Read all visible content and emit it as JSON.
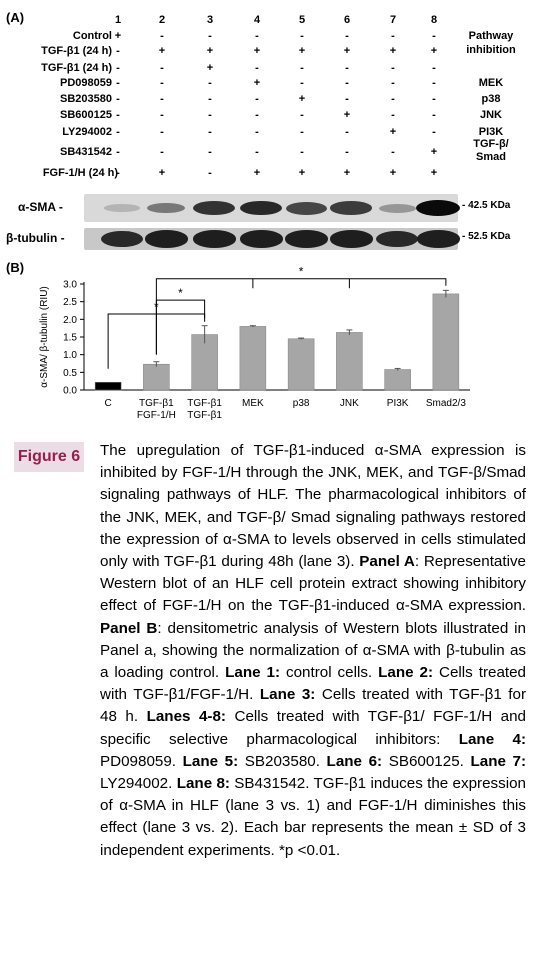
{
  "panel_a": {
    "label": "(A)",
    "lanes": [
      "1",
      "2",
      "3",
      "4",
      "5",
      "6",
      "7",
      "8"
    ],
    "pathway_header": [
      "Pathway",
      "inhibition"
    ],
    "rows": [
      {
        "label": "Control",
        "signs": [
          "+",
          "-",
          "-",
          "-",
          "-",
          "-",
          "-",
          "-"
        ],
        "inhibition": ""
      },
      {
        "label": "TGF-β1 (24 h)",
        "signs": [
          "-",
          "+",
          "+",
          "+",
          "+",
          "+",
          "+",
          "+"
        ],
        "inhibition": ""
      },
      {
        "label": "TGF-β1 (24 h)",
        "signs": [
          "-",
          "-",
          "+",
          "-",
          "-",
          "-",
          "-",
          "-"
        ],
        "inhibition": ""
      },
      {
        "label": "PD098059",
        "signs": [
          "-",
          "-",
          "-",
          "+",
          "-",
          "-",
          "-",
          "-"
        ],
        "inhibition": "MEK"
      },
      {
        "label": "SB203580",
        "signs": [
          "-",
          "-",
          "-",
          "-",
          "+",
          "-",
          "-",
          "-"
        ],
        "inhibition": "p38"
      },
      {
        "label": "SB600125",
        "signs": [
          "-",
          "-",
          "-",
          "-",
          "-",
          "+",
          "-",
          "-"
        ],
        "inhibition": "JNK"
      },
      {
        "label": "LY294002",
        "signs": [
          "-",
          "-",
          "-",
          "-",
          "-",
          "-",
          "+",
          "-"
        ],
        "inhibition": "PI3K"
      },
      {
        "label": "SB431542",
        "signs": [
          "-",
          "-",
          "-",
          "-",
          "-",
          "-",
          "-",
          "+"
        ],
        "inhibition": "TGF-β/ Smad"
      },
      {
        "label": "FGF-1/H (24 h)",
        "signs": [
          "-",
          "+",
          "-",
          "+",
          "+",
          "+",
          "+",
          "+"
        ],
        "inhibition": ""
      }
    ],
    "blots": [
      {
        "label": "α-SMA -",
        "size": "- 42.5 KDa",
        "intensity": [
          0.15,
          0.45,
          0.8,
          0.85,
          0.7,
          0.75,
          0.3,
          1.0
        ]
      },
      {
        "label": "β-tubulin -",
        "size": "- 52.5 KDa",
        "intensity": [
          0.85,
          0.9,
          0.9,
          0.9,
          0.9,
          0.9,
          0.85,
          0.9
        ]
      }
    ]
  },
  "chart_data": {
    "type": "bar",
    "panel_label": "(B)",
    "ylabel": "α-SMA/ β-tubulin (RIU)",
    "ylim": [
      0,
      3.0
    ],
    "yticks": [
      "0.0",
      "0.5",
      "1.0",
      "1.5",
      "2.0",
      "2.5",
      "3.0"
    ],
    "categories": [
      "C",
      "TGF-β1 FGF-1/H",
      "TGF-β1 TGF-β1",
      "MEK",
      "p38",
      "JNK",
      "PI3K",
      "Smad2/3"
    ],
    "category_lines": [
      [
        "C"
      ],
      [
        "TGF-β1",
        "FGF-1/H"
      ],
      [
        "TGF-β1",
        "TGF-β1"
      ],
      [
        "MEK"
      ],
      [
        "p38"
      ],
      [
        "JNK"
      ],
      [
        "PI3K"
      ],
      [
        "Smad2/3"
      ]
    ],
    "values": [
      0.22,
      0.73,
      1.57,
      1.8,
      1.45,
      1.63,
      0.58,
      2.72
    ],
    "errors": [
      0.0,
      0.07,
      0.25,
      0.02,
      0.02,
      0.07,
      0.03,
      0.1
    ],
    "colors": [
      "#000000",
      "#a6a6a6",
      "#a6a6a6",
      "#a6a6a6",
      "#a6a6a6",
      "#a6a6a6",
      "#a6a6a6",
      "#a6a6a6"
    ],
    "significance": [
      {
        "from": 0,
        "to": 2,
        "label": "*"
      },
      {
        "from": 1,
        "to": 2,
        "label": "*"
      },
      {
        "from": 1,
        "to": 7,
        "label": "*"
      }
    ]
  },
  "caption": {
    "label": "Figure 6",
    "parts": [
      {
        "t": "The upregulation of TGF-β1-induced α-SMA expression is inhibited by FGF-1/H through the JNK, MEK, and TGF-β/Smad signaling pathways of HLF. The pharmacological inhibitors of the JNK, MEK, and TGF-β/ Smad signaling pathways restored the expression of α-SMA to levels observed in cells stimulated only with TGF-β1 during 48h (lane 3). "
      },
      {
        "t": "Panel A",
        "b": true
      },
      {
        "t": ": Representative Western blot of an HLF cell protein extract showing inhibitory effect of FGF-1/H on the TGF-β1-induced α-SMA expression. "
      },
      {
        "t": "Panel B",
        "b": true
      },
      {
        "t": ": densitometric analysis of Western blots illustrated in Panel a, showing the normalization of α-SMA with β-tubulin as a loading control. "
      },
      {
        "t": "Lane 1:",
        "b": true
      },
      {
        "t": " control cells. "
      },
      {
        "t": "Lane 2:",
        "b": true
      },
      {
        "t": " Cells treated with TGF-β1/FGF-1/H.   "
      },
      {
        "t": "Lane 3:",
        "b": true
      },
      {
        "t": " Cells treated with TGF-β1 for 48 h. "
      },
      {
        "t": "Lanes 4-8:",
        "b": true
      },
      {
        "t": " Cells treated with TGF-β1/ FGF-1/H and specific selective pharmacological inhibitors: "
      },
      {
        "t": "Lane 4:",
        "b": true
      },
      {
        "t": " PD098059. "
      },
      {
        "t": "Lane 5:",
        "b": true
      },
      {
        "t": " SB203580. "
      },
      {
        "t": "Lane 6:",
        "b": true
      },
      {
        "t": "  SB600125. "
      },
      {
        "t": "Lane 7:",
        "b": true
      },
      {
        "t": " LY294002. "
      },
      {
        "t": "Lane 8:",
        "b": true
      },
      {
        "t": " SB431542. TGF-β1 induces the expression of α-SMA in HLF (lane 3 vs. 1) and FGF-1/H diminishes this effect (lane 3 vs. 2). Each bar represents the mean ± SD of 3 independent experiments. *p <0.01."
      }
    ]
  }
}
